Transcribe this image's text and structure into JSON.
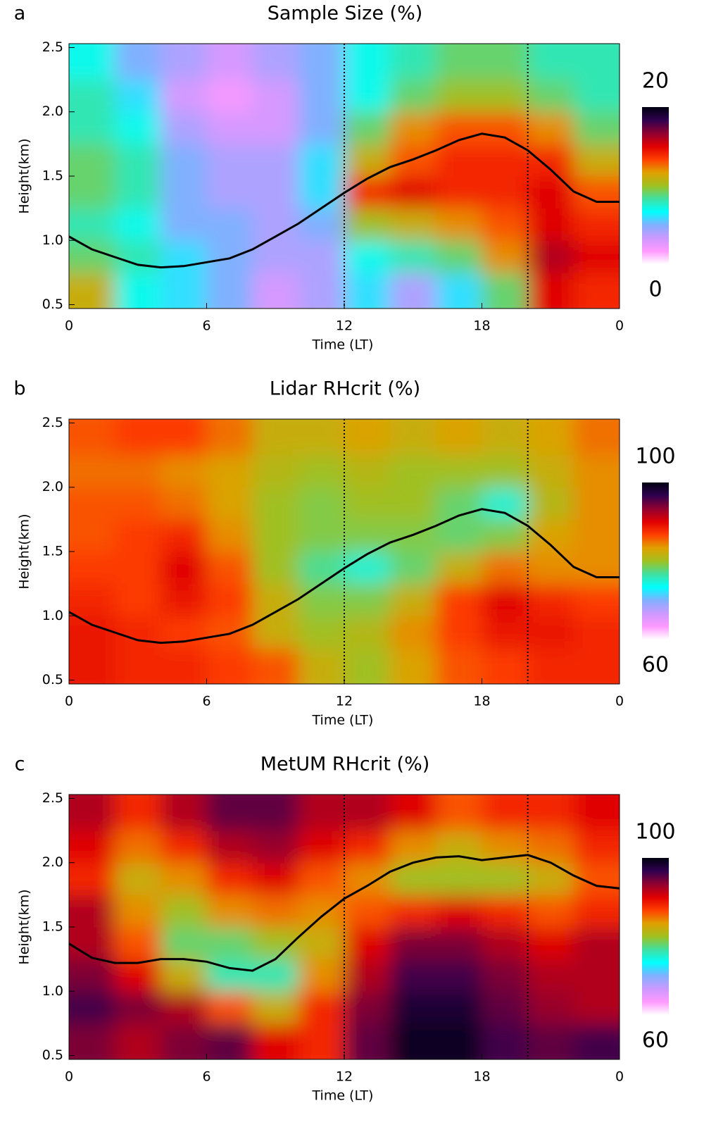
{
  "chart_data": [
    {
      "type": "heatmap",
      "panel": "a",
      "title": "Sample Size (%)",
      "xlabel": "Time (LT)",
      "ylabel": "Height(km)",
      "xlim": [
        0,
        24
      ],
      "ylim": [
        0.47,
        2.53
      ],
      "xticks": [
        0,
        6,
        12,
        18,
        {
          "value": 24,
          "label": "0"
        }
      ],
      "yticks": [
        0.5,
        1.0,
        1.5,
        2.0,
        2.5
      ],
      "x": [
        1,
        3,
        5,
        7,
        9,
        11,
        13,
        15,
        17,
        19,
        21,
        23
      ],
      "y": [
        0.625,
        0.875,
        1.125,
        1.375,
        1.625,
        1.875,
        2.125,
        2.375
      ],
      "z": [
        [
          11,
          7,
          6,
          5,
          3,
          4,
          6,
          4,
          6,
          9,
          15,
          14
        ],
        [
          9,
          8,
          6,
          5,
          4,
          4,
          7,
          8,
          9,
          12,
          16,
          15
        ],
        [
          8,
          7,
          5,
          5,
          4,
          5,
          10,
          11,
          12,
          13,
          15,
          14
        ],
        [
          9,
          8,
          5,
          4,
          4,
          6,
          14,
          15,
          14,
          14,
          15,
          13
        ],
        [
          9,
          8,
          5,
          4,
          4,
          6,
          11,
          13,
          14,
          14,
          14,
          11
        ],
        [
          8,
          7,
          4,
          3,
          3,
          5,
          9,
          12,
          13,
          13,
          12,
          9
        ],
        [
          8,
          6,
          3,
          2,
          3,
          5,
          7,
          9,
          10,
          10,
          9,
          8
        ],
        [
          7,
          5,
          4,
          3,
          4,
          5,
          7,
          8,
          9,
          9,
          8,
          8
        ]
      ],
      "clim": [
        0,
        20
      ],
      "cticks": [
        0,
        20
      ],
      "colormap": [
        "#ffffff",
        "#ff99ff",
        "#cc99ff",
        "#80b0ff",
        "#00ffff",
        "#40e0a0",
        "#a0c020",
        "#e0a000",
        "#ff4000",
        "#e00000",
        "#900030",
        "#300050",
        "#000010"
      ],
      "vlines": [
        12,
        20
      ],
      "line": {
        "color": "#000000",
        "x": [
          0,
          1,
          2,
          3,
          4,
          5,
          6,
          7,
          8,
          9,
          10,
          11,
          12,
          13,
          14,
          15,
          16,
          17,
          18,
          19,
          20,
          21,
          22,
          23,
          24
        ],
        "y": [
          1.03,
          0.93,
          0.87,
          0.81,
          0.79,
          0.8,
          0.83,
          0.86,
          0.93,
          1.03,
          1.13,
          1.25,
          1.37,
          1.48,
          1.57,
          1.63,
          1.7,
          1.78,
          1.83,
          1.8,
          1.7,
          1.55,
          1.38,
          1.3,
          1.3
        ]
      }
    },
    {
      "type": "heatmap",
      "panel": "b",
      "title": "Lidar RHcrit (%)",
      "xlabel": "Time (LT)",
      "ylabel": "Height(km)",
      "xlim": [
        0,
        24
      ],
      "ylim": [
        0.47,
        2.53
      ],
      "xticks": [
        0,
        6,
        12,
        18,
        {
          "value": 24,
          "label": "0"
        }
      ],
      "yticks": [
        0.5,
        1.0,
        1.5,
        2.0,
        2.5
      ],
      "x": [
        1,
        3,
        5,
        7,
        9,
        11,
        13,
        15,
        17,
        19,
        21,
        23
      ],
      "y": [
        0.625,
        0.875,
        1.125,
        1.375,
        1.625,
        1.875,
        2.125,
        2.375
      ],
      "z": [
        [
          89,
          88,
          88,
          87,
          86,
          82,
          80,
          83,
          86,
          87,
          88,
          88
        ],
        [
          89,
          88,
          87,
          86,
          82,
          80,
          81,
          84,
          87,
          89,
          89,
          88
        ],
        [
          88,
          87,
          89,
          87,
          82,
          79,
          79,
          82,
          87,
          90,
          88,
          87
        ],
        [
          87,
          87,
          90,
          86,
          80,
          77,
          75,
          78,
          82,
          85,
          84,
          84
        ],
        [
          86,
          87,
          88,
          84,
          80,
          79,
          79,
          79,
          78,
          79,
          83,
          84
        ],
        [
          86,
          86,
          85,
          83,
          80,
          79,
          80,
          80,
          78,
          75,
          81,
          84
        ],
        [
          85,
          85,
          84,
          83,
          81,
          80,
          81,
          80,
          80,
          80,
          82,
          84
        ],
        [
          86,
          87,
          87,
          85,
          82,
          82,
          83,
          82,
          83,
          82,
          83,
          85
        ]
      ],
      "clim": [
        60,
        100
      ],
      "cticks": [
        60,
        100
      ],
      "colormap": [
        "#ffffff",
        "#ff99ff",
        "#cc99ff",
        "#80b0ff",
        "#00ffff",
        "#40e0a0",
        "#a0c020",
        "#e0a000",
        "#ff4000",
        "#e00000",
        "#900030",
        "#300050",
        "#000010"
      ],
      "vlines": [
        12,
        20
      ],
      "line": {
        "color": "#000000",
        "x": [
          0,
          1,
          2,
          3,
          4,
          5,
          6,
          7,
          8,
          9,
          10,
          11,
          12,
          13,
          14,
          15,
          16,
          17,
          18,
          19,
          20,
          21,
          22,
          23,
          24
        ],
        "y": [
          1.03,
          0.93,
          0.87,
          0.81,
          0.79,
          0.8,
          0.83,
          0.86,
          0.93,
          1.03,
          1.13,
          1.25,
          1.37,
          1.48,
          1.57,
          1.63,
          1.7,
          1.78,
          1.83,
          1.8,
          1.7,
          1.55,
          1.38,
          1.3,
          1.3
        ]
      }
    },
    {
      "type": "heatmap",
      "panel": "c",
      "title": "MetUM RHcrit (%)",
      "xlabel": "Time (LT)",
      "ylabel": "Height(km)",
      "xlim": [
        0,
        24
      ],
      "ylim": [
        0.47,
        2.53
      ],
      "xticks": [
        0,
        6,
        12,
        18,
        {
          "value": 24,
          "label": "0"
        }
      ],
      "yticks": [
        0.5,
        1.0,
        1.5,
        2.0,
        2.5
      ],
      "x": [
        1,
        3,
        5,
        7,
        9,
        11,
        13,
        15,
        17,
        19,
        21,
        23
      ],
      "y": [
        0.625,
        0.875,
        1.125,
        1.375,
        1.625,
        1.875,
        2.125,
        2.375
      ],
      "z": [
        [
          94,
          92,
          94,
          95,
          90,
          88,
          95,
          99,
          99,
          96,
          95,
          96
        ],
        [
          96,
          94,
          92,
          86,
          82,
          88,
          94,
          98,
          98,
          95,
          93,
          92
        ],
        [
          94,
          90,
          82,
          76,
          76,
          84,
          92,
          96,
          96,
          94,
          92,
          92
        ],
        [
          92,
          86,
          78,
          78,
          80,
          82,
          90,
          94,
          94,
          92,
          90,
          92
        ],
        [
          92,
          84,
          80,
          84,
          85,
          84,
          86,
          88,
          90,
          88,
          86,
          88
        ],
        [
          88,
          82,
          84,
          88,
          90,
          86,
          84,
          80,
          80,
          80,
          82,
          86
        ],
        [
          90,
          85,
          88,
          92,
          93,
          90,
          88,
          84,
          82,
          84,
          85,
          88
        ],
        [
          92,
          88,
          92,
          95,
          95,
          92,
          92,
          90,
          86,
          88,
          88,
          90
        ]
      ],
      "clim": [
        60,
        100
      ],
      "cticks": [
        60,
        100
      ],
      "colormap": [
        "#ffffff",
        "#ff99ff",
        "#cc99ff",
        "#80b0ff",
        "#00ffff",
        "#40e0a0",
        "#a0c020",
        "#e0a000",
        "#ff4000",
        "#e00000",
        "#900030",
        "#300050",
        "#000010"
      ],
      "vlines": [
        12,
        20
      ],
      "line": {
        "color": "#000000",
        "x": [
          0,
          1,
          2,
          3,
          4,
          5,
          6,
          7,
          8,
          9,
          10,
          11,
          12,
          13,
          14,
          15,
          16,
          17,
          18,
          19,
          20,
          21,
          22,
          23,
          24
        ],
        "y": [
          1.37,
          1.26,
          1.22,
          1.22,
          1.25,
          1.25,
          1.23,
          1.18,
          1.16,
          1.25,
          1.42,
          1.58,
          1.72,
          1.82,
          1.93,
          2.0,
          2.04,
          2.05,
          2.02,
          2.04,
          2.06,
          2.0,
          1.9,
          1.82,
          1.8
        ]
      }
    }
  ]
}
